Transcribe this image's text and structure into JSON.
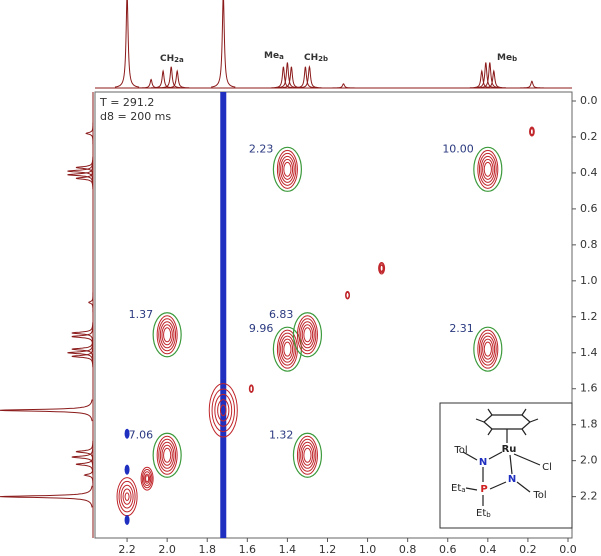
{
  "chart_data": {
    "type": "contour",
    "annotations": [
      "T = 291.2",
      "d8 = 200 ms"
    ],
    "xlim": [
      2.36,
      -0.02
    ],
    "xticks": [
      2.2,
      {
        "value": 2,
        "label": "2.0"
      },
      1.8,
      1.6,
      1.4,
      1.2,
      {
        "value": 1,
        "label": "1.0"
      },
      0.8,
      0.6,
      0.4,
      0.2,
      {
        "value": 0,
        "label": "0.0"
      }
    ],
    "ylim": [
      -0.05,
      2.43
    ],
    "yticks": [
      {
        "value": 0,
        "label": "0.0"
      },
      0.2,
      0.4,
      0.6,
      0.8,
      {
        "value": 1,
        "label": "1.0"
      },
      1.2,
      1.4,
      1.6,
      1.8,
      {
        "value": 2,
        "label": "2.0"
      },
      2.2
    ],
    "cross_peaks": {
      "x": [
        1.4,
        0.4,
        2.0,
        1.4,
        1.3,
        0.4,
        2.0,
        1.3
      ],
      "y": [
        0.38,
        0.38,
        1.3,
        1.38,
        1.3,
        1.38,
        1.97,
        1.97
      ],
      "values": [
        2.23,
        10,
        1.37,
        9.96,
        6.83,
        2.31,
        7.06,
        1.32
      ],
      "value_labels": [
        "2.23",
        "10.00",
        "1.37",
        "9.96",
        "6.83",
        "2.31",
        "7.06",
        "1.32"
      ],
      "color": "#c0262b",
      "circle_color": "#3c9a3c",
      "label_color": "#2b3a80"
    },
    "other_peaks": {
      "x": [
        2.2,
        1.72,
        2.1,
        1.58,
        1.1,
        0.93,
        0.18
      ],
      "y": [
        2.2,
        1.72,
        2.1,
        1.6,
        1.08,
        0.93,
        0.17
      ],
      "widths": [
        0.05,
        0.07,
        0.03,
        0.01,
        0.01,
        0.015,
        0.012
      ]
    },
    "negative_peaks": {
      "x": [
        2.2,
        2.2,
        2.2
      ],
      "y": [
        1.85,
        2.05,
        2.33
      ],
      "color": "#1f2fbf"
    },
    "streak_x": 1.72,
    "projection": {
      "ppm": [
        2.2,
        2.08,
        2.02,
        1.98,
        1.95,
        1.72,
        1.42,
        1.4,
        1.38,
        1.31,
        1.29,
        1.12,
        0.43,
        0.41,
        0.39,
        0.37,
        0.18
      ],
      "heights": [
        1.1,
        0.1,
        0.2,
        0.25,
        0.2,
        1.1,
        0.25,
        0.3,
        0.25,
        0.25,
        0.25,
        0.05,
        0.2,
        0.3,
        0.3,
        0.2,
        0.08
      ],
      "color": "#8b1a1a"
    },
    "projection_labels": [
      {
        "text": "CH",
        "sub": "2a"
      },
      {
        "text": "Me",
        "sub": "a"
      },
      {
        "text": "CH",
        "sub": "2b"
      },
      {
        "text": "Me",
        "sub": "b"
      }
    ]
  },
  "inset": {
    "ru": "Ru",
    "cl": "Cl",
    "tol1": "Tol",
    "n1": "N",
    "p": "P",
    "n2": "N",
    "tol2": "Tol",
    "et_a": "Et",
    "et_a_sub": "a",
    "et_b": "Et",
    "et_b_sub": "b"
  }
}
